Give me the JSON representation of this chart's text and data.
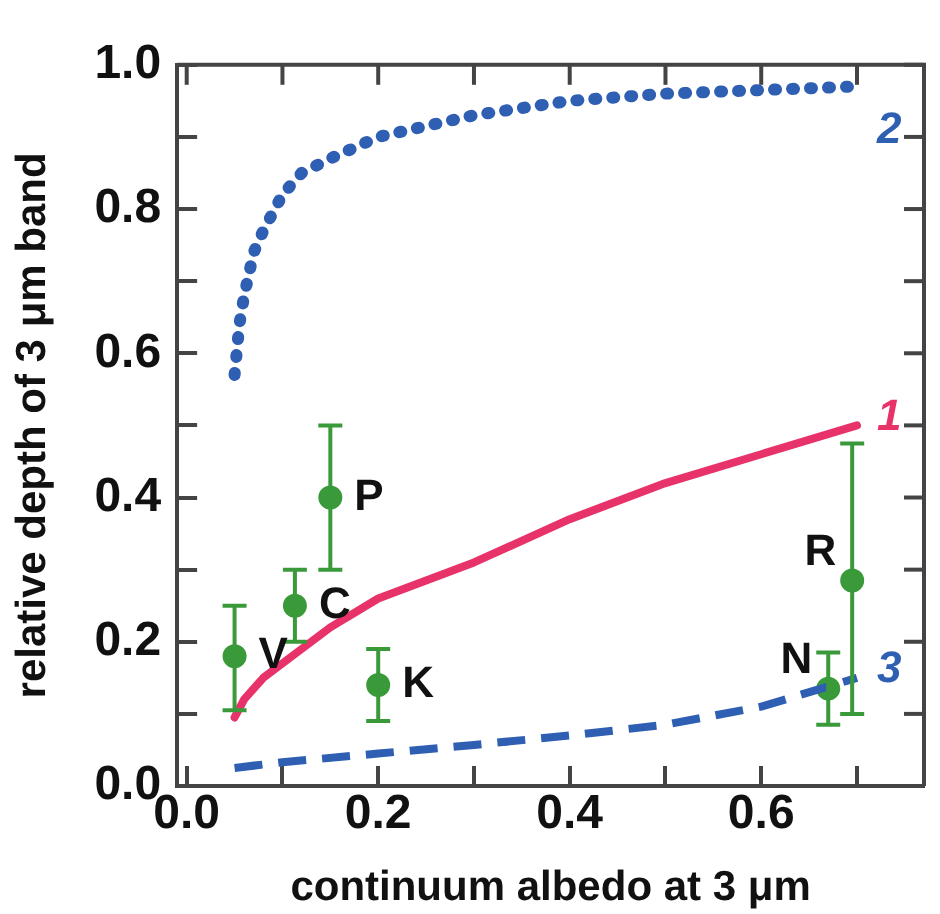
{
  "chart_data": {
    "type": "scatter",
    "xlabel": "continuum albedo at 3 μm",
    "ylabel": "relative depth of 3 μm band",
    "xlim": [
      -0.01,
      0.77
    ],
    "ylim": [
      0,
      1
    ],
    "xticks": [
      {
        "value": 0,
        "label": "0.0"
      },
      {
        "value": 0.1,
        "label": null
      },
      0.2,
      {
        "value": 0.3,
        "label": null
      },
      0.4,
      {
        "value": 0.5,
        "label": null
      },
      0.6,
      {
        "value": 0.7,
        "label": null
      }
    ],
    "yticks": [
      {
        "value": 0,
        "label": "0.0"
      },
      {
        "value": 0.1,
        "label": null
      },
      0.2,
      {
        "value": 0.3,
        "label": null
      },
      0.4,
      {
        "value": 0.5,
        "label": null
      },
      0.6,
      {
        "value": 0.7,
        "label": null
      },
      0.8,
      {
        "value": 0.9,
        "label": null
      },
      {
        "value": 1,
        "label": "1.0"
      }
    ],
    "grid": false,
    "legend": false,
    "series": [
      {
        "type": "line",
        "name": "1",
        "color": "#e8336a",
        "line_style": "solid",
        "marker": "none",
        "x": [
          0.05,
          0.06,
          0.08,
          0.1,
          0.15,
          0.2,
          0.3,
          0.4,
          0.5,
          0.6,
          0.7
        ],
        "values": [
          0.095,
          0.12,
          0.15,
          0.17,
          0.22,
          0.26,
          0.31,
          0.37,
          0.42,
          0.46,
          0.5
        ]
      },
      {
        "type": "line",
        "name": "2",
        "color": "#2f5fb3",
        "line_style": "dotted",
        "marker": "none",
        "x": [
          0.05,
          0.055,
          0.06,
          0.07,
          0.08,
          0.1,
          0.12,
          0.15,
          0.2,
          0.3,
          0.4,
          0.5,
          0.6,
          0.7
        ],
        "values": [
          0.57,
          0.64,
          0.68,
          0.74,
          0.77,
          0.82,
          0.85,
          0.87,
          0.9,
          0.93,
          0.95,
          0.96,
          0.965,
          0.97
        ]
      },
      {
        "type": "line",
        "name": "3",
        "color": "#2f5fb3",
        "line_style": "dashed",
        "marker": "none",
        "x": [
          0.05,
          0.1,
          0.2,
          0.3,
          0.4,
          0.5,
          0.6,
          0.7
        ],
        "values": [
          0.025,
          0.033,
          0.045,
          0.057,
          0.07,
          0.085,
          0.11,
          0.15
        ]
      },
      {
        "type": "scatter",
        "color": "#3a9a3a",
        "marker": "circle",
        "x": [
          0.05,
          0.113,
          0.15,
          0.2,
          0.67,
          0.695
        ],
        "values": [
          0.18,
          0.25,
          0.4,
          0.14,
          0.135,
          0.285
        ],
        "errors": [
          [
            0.105,
            0.25
          ],
          [
            0.2,
            0.3
          ],
          [
            0.3,
            0.5
          ],
          [
            0.09,
            0.19
          ],
          [
            0.085,
            0.185
          ],
          [
            0.1,
            0.475
          ]
        ]
      }
    ],
    "annotations": [
      {
        "text": "V",
        "x": 0.05,
        "y": 0.18
      },
      {
        "text": "C",
        "x": 0.113,
        "y": 0.25
      },
      {
        "text": "P",
        "x": 0.15,
        "y": 0.4
      },
      {
        "text": "K",
        "x": 0.2,
        "y": 0.14
      },
      {
        "text": "N",
        "x": 0.67,
        "y": 0.135
      },
      {
        "text": "R",
        "x": 0.695,
        "y": 0.285
      }
    ]
  }
}
